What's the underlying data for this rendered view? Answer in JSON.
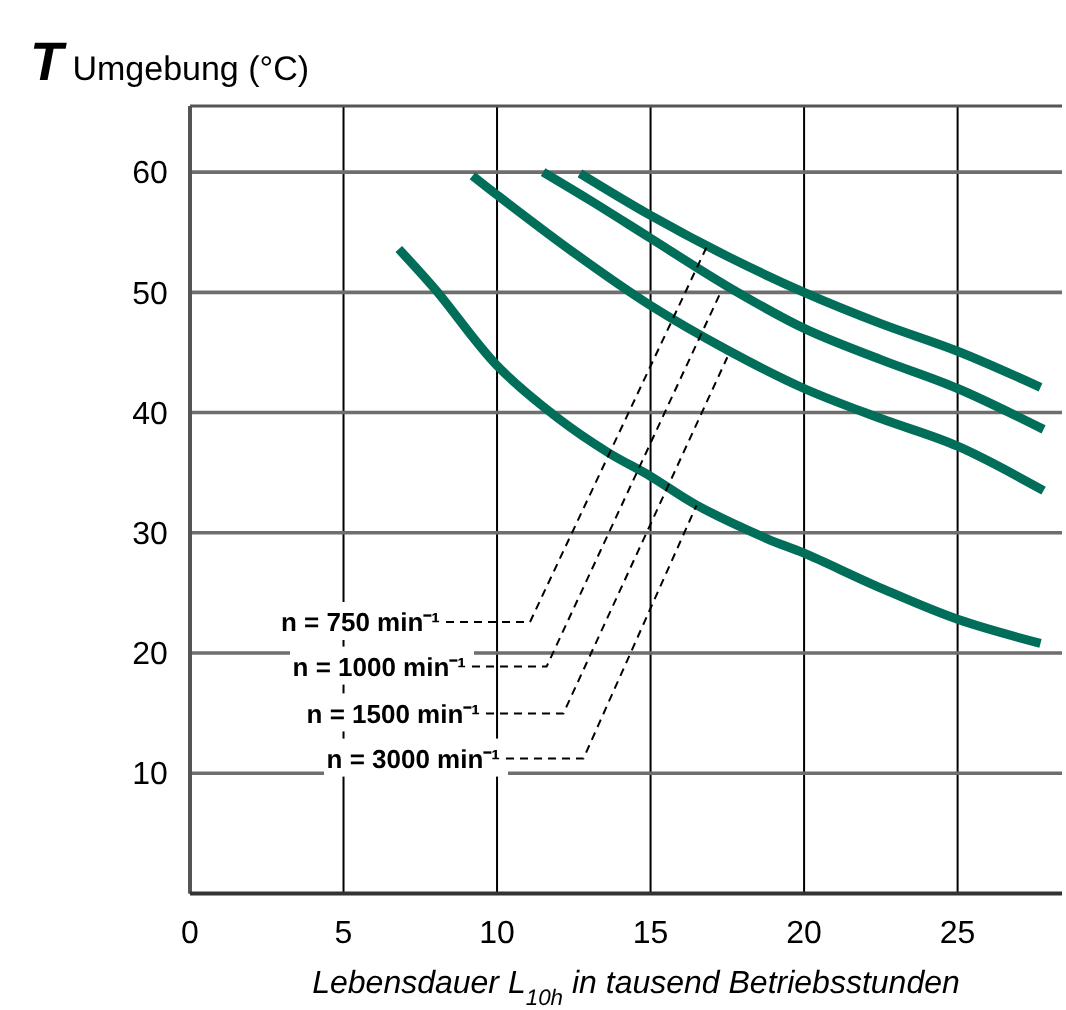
{
  "chart_data": {
    "type": "line",
    "ylabel": "T Umgebung (°C)",
    "xlabel": "Lebensdauer L$_{10h}$ in tausend Betriebsstunden",
    "xlim": [
      0,
      28.4
    ],
    "ylim": [
      0,
      65.5
    ],
    "xticks": [
      0,
      5,
      10,
      15,
      20,
      25
    ],
    "yticks": [
      10,
      20,
      30,
      40,
      50,
      60
    ],
    "grid": true,
    "marker": "none",
    "line_style": "solid",
    "series": [
      {
        "color": "#006e58",
        "x": [
          12.7,
          15,
          17.5,
          20,
          22.5,
          25,
          27.7
        ],
        "values": [
          59.9,
          56.4,
          53,
          50,
          47.4,
          45.1,
          42.1
        ]
      },
      {
        "color": "#006e58",
        "x": [
          11.5,
          13,
          15,
          17.5,
          20,
          22.5,
          25,
          27.8
        ],
        "values": [
          60,
          57.7,
          54.5,
          50.5,
          47,
          44.4,
          42,
          38.6
        ]
      },
      {
        "color": "#006e58",
        "x": [
          9.2,
          10,
          12.5,
          15,
          17.5,
          20,
          22.5,
          25,
          27.8
        ],
        "values": [
          59.7,
          58.1,
          53.3,
          48.9,
          45.2,
          42,
          39.5,
          37.2,
          33.5
        ]
      },
      {
        "color": "#006e58",
        "x": [
          6.8,
          8,
          10,
          12,
          13.6,
          15,
          16.5,
          18.8,
          20,
          22.5,
          25,
          27.7
        ],
        "values": [
          53.6,
          50.2,
          43.9,
          39.5,
          36.7,
          34.7,
          32.3,
          29.5,
          28.3,
          25.4,
          22.8,
          20.8
        ]
      }
    ],
    "annotations": [
      {
        "text": "n = 750 min⁻¹",
        "x": 16.85,
        "y": 53.9
      },
      {
        "text": "n = 1000 min⁻¹",
        "x": 17.3,
        "y": 50.1
      },
      {
        "text": "n = 1500 min⁻¹",
        "x": 17.5,
        "y": 44.6
      },
      {
        "text": "n = 3000 min⁻¹",
        "x": 16.5,
        "y": 32.3
      }
    ]
  }
}
